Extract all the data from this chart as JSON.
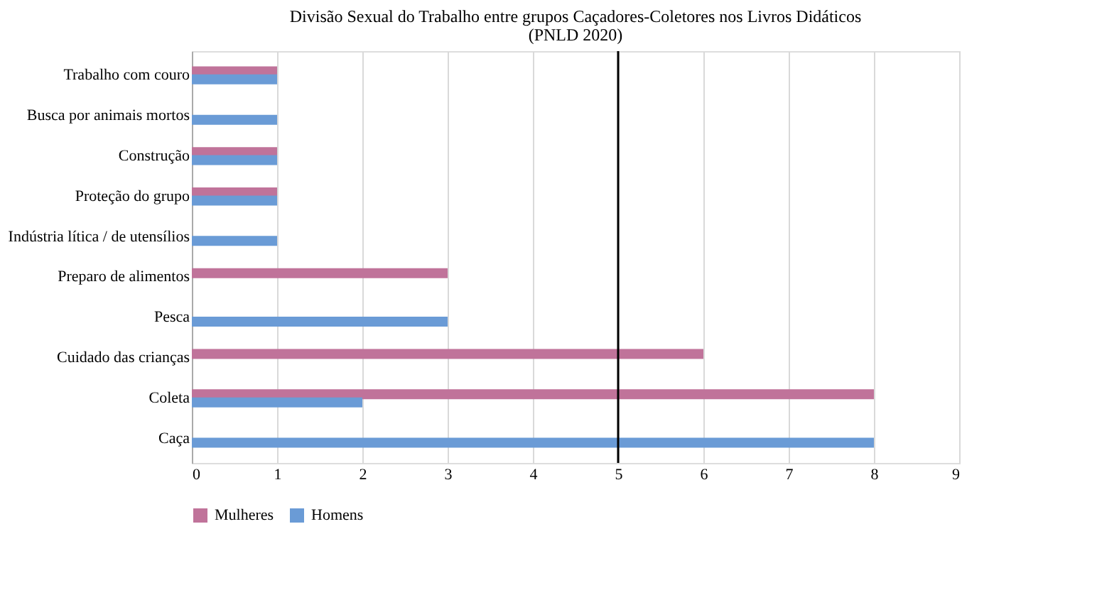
{
  "chart_data": {
    "type": "bar",
    "orientation": "horizontal",
    "title": "Divisão Sexual do Trabalho entre grupos Caçadores-Coletores nos Livros Didáticos",
    "subtitle": "(PNLD 2020)",
    "categories": [
      "Trabalho com couro",
      "Busca por animais mortos",
      "Construção",
      "Proteção do grupo",
      "Indústria lítica / de utensílios",
      "Preparo de alimentos",
      "Pesca",
      "Cuidado das crianças",
      "Coleta",
      "Caça"
    ],
    "series": [
      {
        "name": "Mulheres",
        "color": "#c0739a",
        "values": [
          1,
          null,
          1,
          1,
          null,
          3,
          null,
          6,
          8,
          null
        ]
      },
      {
        "name": "Homens",
        "color": "#6a9bd6",
        "values": [
          1,
          1,
          1,
          1,
          1,
          null,
          3,
          null,
          2,
          8
        ]
      }
    ],
    "xlim": [
      0,
      9
    ],
    "xticks": [
      0,
      1,
      2,
      3,
      4,
      5,
      6,
      7,
      8,
      9
    ],
    "ref_lines": [
      {
        "axis": "x",
        "value": 5,
        "color": "#000000"
      }
    ],
    "grid": "x",
    "legend": "bottom"
  }
}
